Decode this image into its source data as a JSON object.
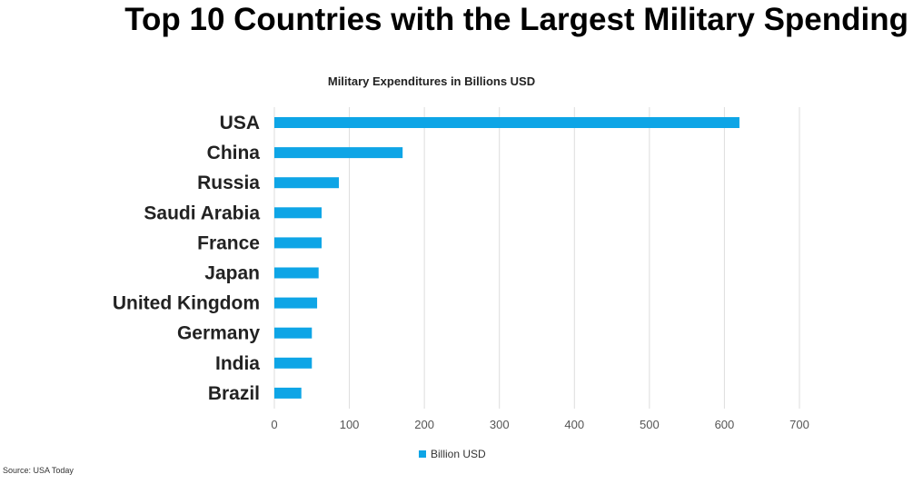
{
  "page_title": "Top 10 Countries with the Largest Military Spending",
  "source": "Source: USA Today",
  "colors": {
    "bar": "#0ea5e6",
    "grid": "#dddddd",
    "text": "#222222"
  },
  "chart_data": {
    "type": "bar",
    "orientation": "horizontal",
    "title": "Military Expenditures in Billions USD",
    "xlabel": "",
    "ylabel": "",
    "xlim": [
      0,
      700
    ],
    "x_ticks": [
      0,
      100,
      200,
      300,
      400,
      500,
      600,
      700
    ],
    "x_tick_labels": [
      "0",
      "100",
      "200",
      "300",
      "400",
      "500",
      "600",
      "700"
    ],
    "grid": true,
    "legend_position": "bottom",
    "categories": [
      "USA",
      "China",
      "Russia",
      "Saudi Arabia",
      "France",
      "Japan",
      "United Kingdom",
      "Germany",
      "India",
      "Brazil"
    ],
    "series": [
      {
        "name": "Billion USD",
        "values": [
          620,
          171,
          86,
          63,
          63,
          59,
          57,
          50,
          50,
          36
        ]
      }
    ]
  }
}
